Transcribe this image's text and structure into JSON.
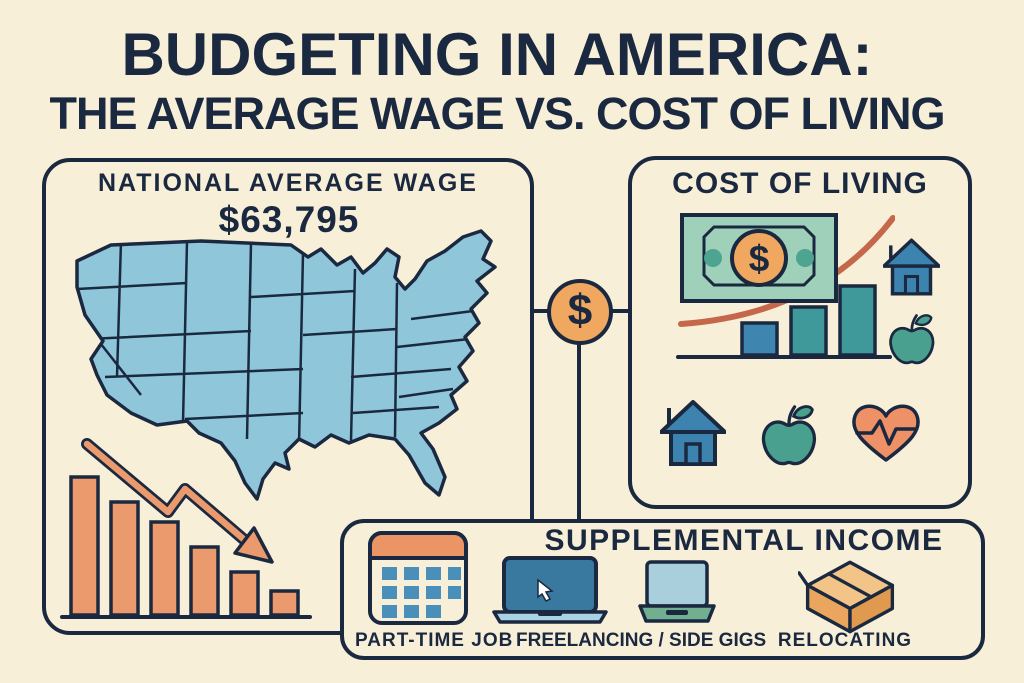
{
  "title": {
    "line1": "BUDGETING IN AMERICA:",
    "line2": "THE AVERAGE WAGE VS. COST OF LIVING"
  },
  "wage_panel": {
    "heading": "NATIONAL AVERAGE WAGE",
    "amount": "$63,795",
    "map_icon": "us-states-map",
    "trend": {
      "type": "bar",
      "direction": "declining",
      "values": [
        138,
        113,
        93,
        68,
        43,
        24
      ],
      "bar_color": "#eb9a6d",
      "arrow_icon": "downward-trend-arrow"
    }
  },
  "connector": {
    "symbol": "$",
    "icon": "dollar-circle"
  },
  "cost_panel": {
    "heading": "COST OF LIVING",
    "bill_symbol": "$",
    "icons": [
      "dollar-bill-icon",
      "rising-curve",
      "rising-bar-chart",
      "house-icon",
      "apple-icon",
      "heart-pulse-icon"
    ],
    "trend": {
      "type": "bar",
      "direction": "rising",
      "values": [
        32,
        48,
        69
      ],
      "bar_colors": [
        "#3e86af",
        "#3f999b",
        "#3f999b"
      ],
      "curve_color": "#c4674a"
    }
  },
  "supplemental_panel": {
    "heading": "SUPPLEMENTAL INCOME",
    "items": [
      {
        "label": "PART-TIME JOB",
        "icon": "calendar-icon"
      },
      {
        "label": "FREELANCING / SIDE GIGS",
        "icon": "laptop-icons"
      },
      {
        "label": "RELOCATING",
        "icon": "moving-box-icon"
      }
    ]
  },
  "colors": {
    "background": "#f8efd9",
    "navy_ink": "#1b2940",
    "map_blue": "#8fc6d9",
    "orange": "#eb9a6d",
    "connector_orange": "#f0a75f",
    "terracotta_curve": "#c4674a",
    "bill_mint": "#9fd0ba",
    "bill_dot_teal": "#4ea391",
    "bar_blue": "#3e86af",
    "bar_teal": "#3f999b",
    "house_blue": "#3d83af",
    "apple_teal": "#4aa08e",
    "heart_orange": "#ef9166",
    "calendar_orange": "#eb9465",
    "calendar_square_blue": "#4a8fba",
    "laptop_screen_dark": "#39789f",
    "laptop_base_light": "#a9d2e2",
    "laptop2_screen": "#a9cfdd",
    "laptop2_base": "#72ae90",
    "box_top": "#f3c487",
    "box_front": "#eaa65e",
    "box_side": "#df9a50"
  }
}
